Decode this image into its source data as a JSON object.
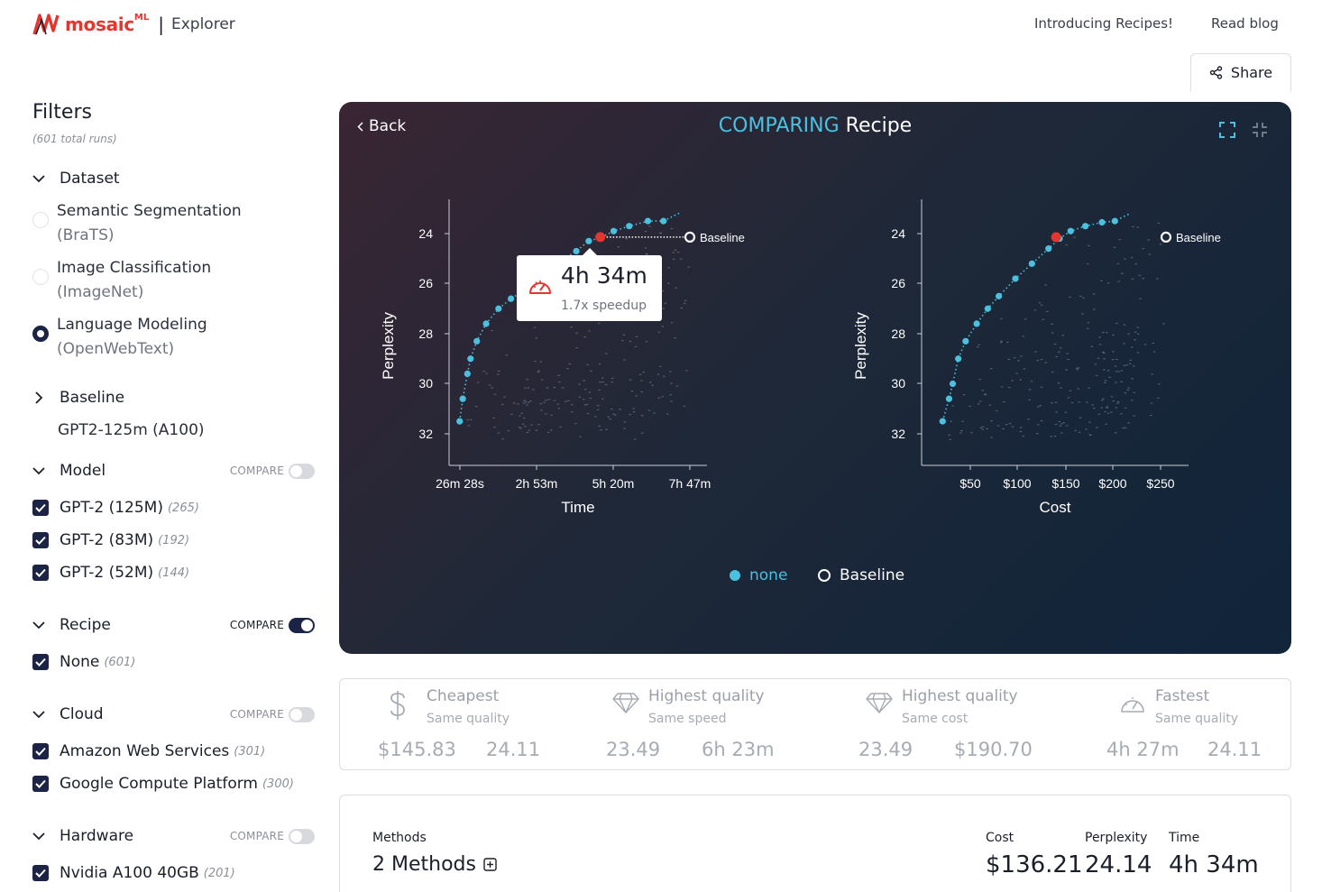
{
  "header": {
    "logo_text": "mosaic",
    "logo_sup": "ML",
    "separator": "|",
    "app_name": "Explorer",
    "links": [
      "Introducing Recipes!",
      "Read blog"
    ],
    "share_label": "Share"
  },
  "sidebar": {
    "title": "Filters",
    "total_runs": "(601 total runs)",
    "compare_label": "COMPARE",
    "dataset": {
      "label": "Dataset",
      "options": [
        {
          "name": "Semantic Segmentation",
          "detail": "(BraTS)",
          "selected": false
        },
        {
          "name": "Image Classification",
          "detail": "(ImageNet)",
          "selected": false
        },
        {
          "name": "Language Modeling",
          "detail": "(OpenWebText)",
          "selected": true
        }
      ]
    },
    "baseline": {
      "label": "Baseline",
      "value": "GPT2-125m (A100)"
    },
    "model": {
      "label": "Model",
      "compare_on": false,
      "items": [
        {
          "label": "GPT-2 (125M)",
          "count": "(265)"
        },
        {
          "label": "GPT-2 (83M)",
          "count": "(192)"
        },
        {
          "label": "GPT-2 (52M)",
          "count": "(144)"
        }
      ]
    },
    "recipe": {
      "label": "Recipe",
      "compare_on": true,
      "items": [
        {
          "label": "None",
          "count": "(601)"
        }
      ]
    },
    "cloud": {
      "label": "Cloud",
      "compare_on": false,
      "items": [
        {
          "label": "Amazon Web Services",
          "count": "(301)"
        },
        {
          "label": "Google Compute Platform",
          "count": "(300)"
        }
      ]
    },
    "hardware": {
      "label": "Hardware",
      "compare_on": false,
      "items": [
        {
          "label": "Nvidia A100 40GB",
          "count": "(201)"
        }
      ]
    }
  },
  "panel": {
    "back_label": "Back",
    "title_accent": "COMPARING",
    "title_rest": "Recipe",
    "tooltip": {
      "value": "4h 34m",
      "subtitle": "1.7x speedup"
    },
    "legend": [
      {
        "label": "none",
        "color": "#4bc0df"
      },
      {
        "label": "Baseline",
        "color": "#ffffff"
      }
    ]
  },
  "chart_data": [
    {
      "type": "scatter",
      "xlabel": "Time",
      "ylabel": "Perplexity",
      "x_tick_labels": [
        "26m 28s",
        "2h 53m",
        "5h 20m",
        "7h 47m"
      ],
      "y_ticks": [
        24,
        26,
        28,
        30,
        32
      ],
      "y_inverted": true,
      "series": [
        {
          "name": "none",
          "points_hours": [
            [
              0.05,
              31.5
            ],
            [
              0.15,
              30.6
            ],
            [
              0.3,
              29.6
            ],
            [
              0.4,
              29.0
            ],
            [
              0.6,
              28.3
            ],
            [
              0.9,
              27.6
            ],
            [
              1.3,
              27.0
            ],
            [
              1.7,
              26.6
            ],
            [
              2.2,
              26.2
            ],
            [
              2.7,
              25.7
            ],
            [
              3.3,
              25.1
            ],
            [
              3.8,
              24.7
            ],
            [
              4.2,
              24.3
            ],
            [
              4.6,
              24.15
            ],
            [
              5.0,
              23.9
            ],
            [
              5.5,
              23.7
            ],
            [
              6.1,
              23.5
            ],
            [
              6.6,
              23.5
            ]
          ]
        },
        {
          "name": "Baseline",
          "points_hours": [
            [
              7.8,
              24.14
            ]
          ]
        }
      ],
      "highlight": {
        "time": "4h 34m",
        "perplexity": 24.14
      }
    },
    {
      "type": "scatter",
      "xlabel": "Cost",
      "ylabel": "Perplexity",
      "x_tick_labels": [
        "$50",
        "$100",
        "$150",
        "$200",
        "$250"
      ],
      "y_ticks": [
        24,
        26,
        28,
        30,
        32
      ],
      "y_inverted": true,
      "series": [
        {
          "name": "none",
          "points": [
            [
              13,
              31.5
            ],
            [
              20,
              30.6
            ],
            [
              24,
              30.0
            ],
            [
              30,
              29.0
            ],
            [
              38,
              28.3
            ],
            [
              50,
              27.6
            ],
            [
              62,
              27.0
            ],
            [
              74,
              26.5
            ],
            [
              92,
              25.8
            ],
            [
              110,
              25.2
            ],
            [
              128,
              24.6
            ],
            [
              140,
              24.2
            ],
            [
              152,
              23.9
            ],
            [
              168,
              23.7
            ],
            [
              186,
              23.55
            ],
            [
              200,
              23.5
            ]
          ]
        },
        {
          "name": "Baseline",
          "points": [
            [
              256,
              24.14
            ]
          ]
        }
      ],
      "highlight": {
        "cost": 136.21,
        "perplexity": 24.14
      }
    }
  ],
  "summary": [
    {
      "title": "Cheapest",
      "subtitle": "Same quality",
      "v1": "$145.83",
      "v2": "24.11",
      "icon": "dollar-icon"
    },
    {
      "title": "Highest quality",
      "subtitle": "Same speed",
      "v1": "23.49",
      "v2": "6h 23m",
      "icon": "diamond-icon"
    },
    {
      "title": "Highest quality",
      "subtitle": "Same cost",
      "v1": "23.49",
      "v2": "$190.70",
      "icon": "diamond-icon"
    },
    {
      "title": "Fastest",
      "subtitle": "Same quality",
      "v1": "4h 27m",
      "v2": "24.11",
      "icon": "speedometer-icon"
    }
  ],
  "detail": {
    "methods_label": "Methods",
    "methods_value": "2 Methods",
    "cost_label": "Cost",
    "cost_value": "$136.21",
    "perplexity_label": "Perplexity",
    "perplexity_value": "24.14",
    "time_label": "Time",
    "time_value": "4h 34m"
  },
  "colors": {
    "accent": "#4bc0df",
    "highlight": "#e5352f",
    "brand": "#e5352f",
    "navy": "#1b2444"
  }
}
